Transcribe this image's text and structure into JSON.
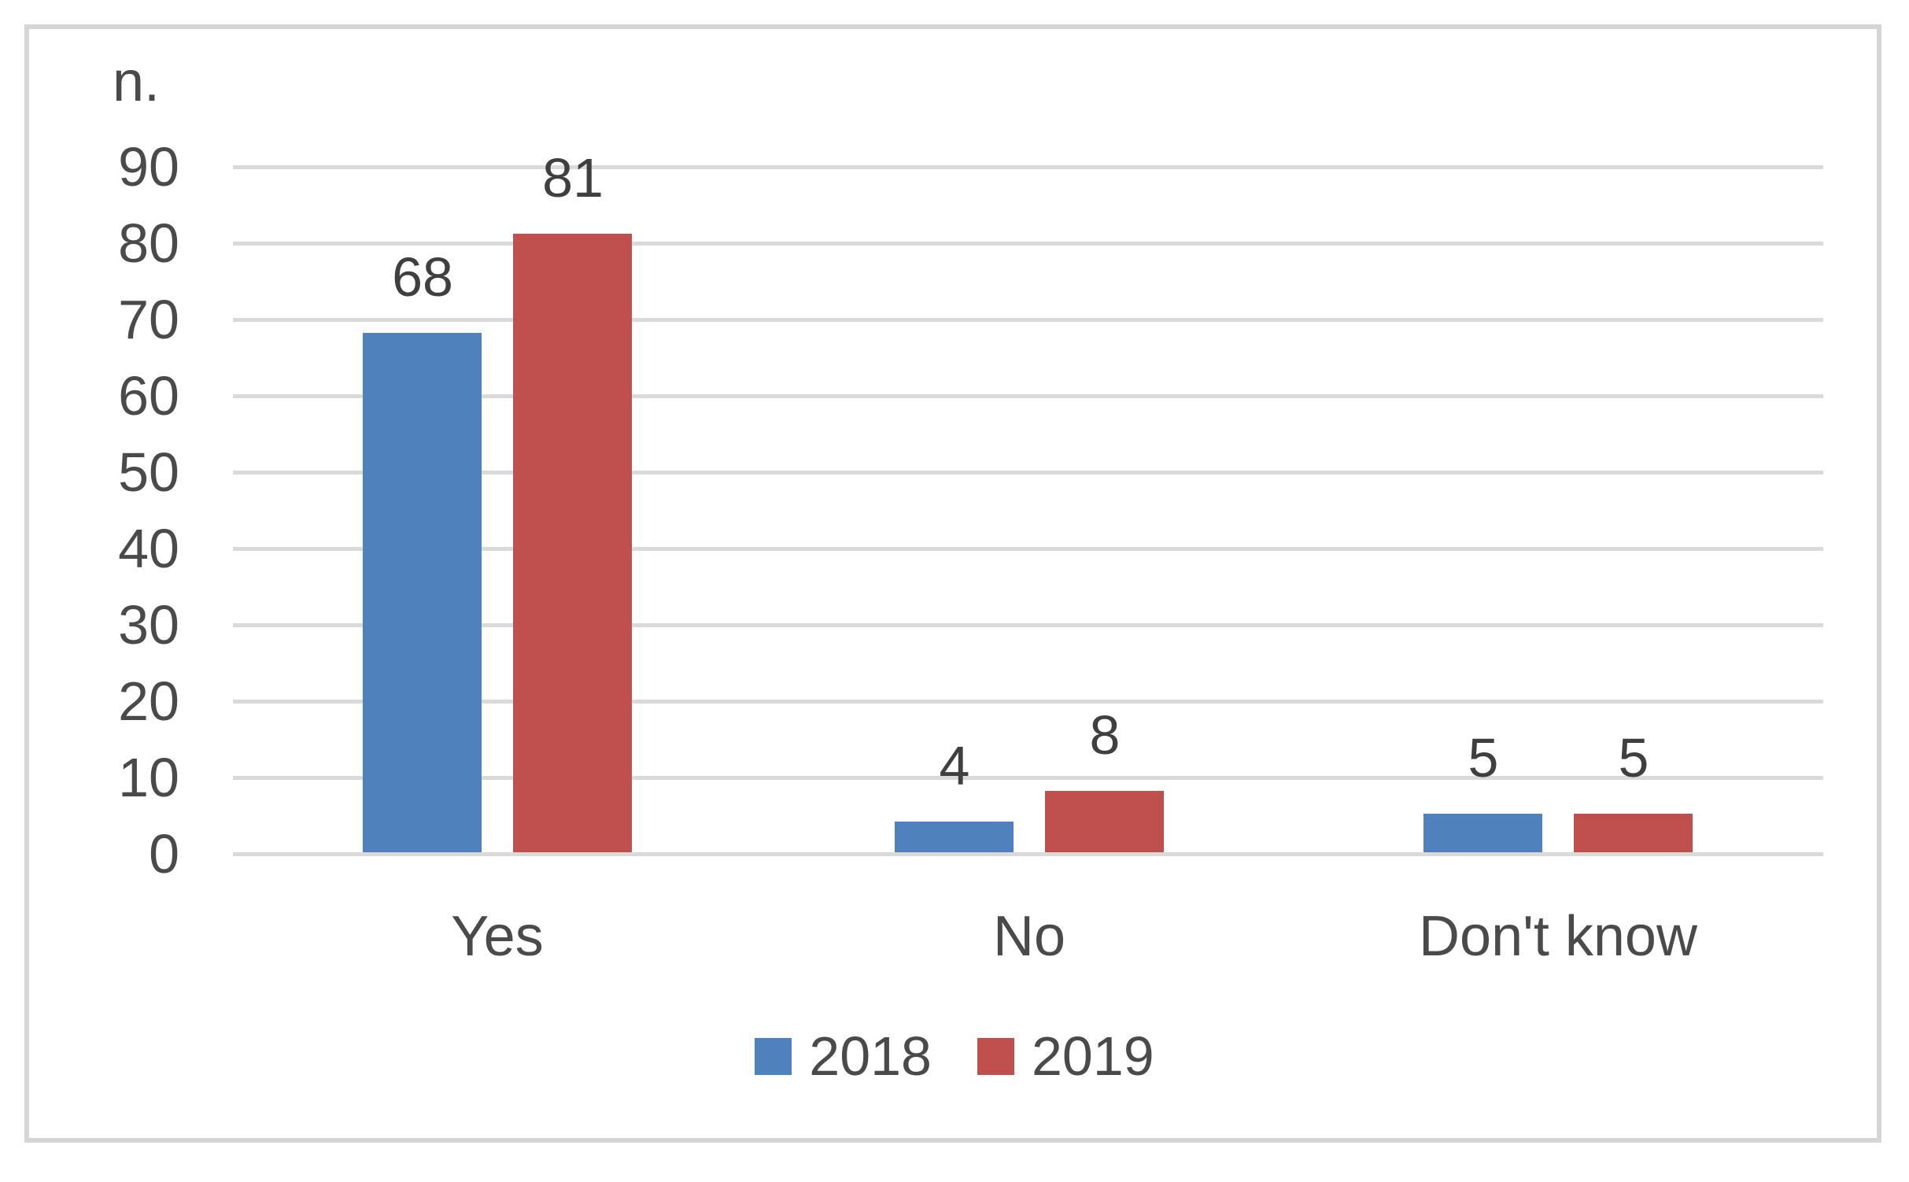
{
  "chart_data": {
    "type": "bar",
    "title": "",
    "ylabel": "n.",
    "xlabel": "",
    "categories": [
      "Yes",
      "No",
      "Don't know"
    ],
    "series": [
      {
        "name": "2018",
        "color": "#4F81BD",
        "values": [
          68,
          4,
          5
        ]
      },
      {
        "name": "2019",
        "color": "#C0504D",
        "values": [
          81,
          8,
          5
        ]
      }
    ],
    "data_labels": [
      {
        "series": "2018",
        "values": [
          "68",
          "4",
          "5"
        ]
      },
      {
        "series": "2019",
        "values": [
          "81",
          "8",
          "5"
        ]
      }
    ],
    "ylim": [
      0,
      90
    ],
    "ytick_step": 10,
    "ytick_labels": [
      "0",
      "10",
      "20",
      "30",
      "40",
      "50",
      "60",
      "70",
      "80",
      "90"
    ],
    "grid": true,
    "legend_position": "bottom"
  },
  "colors": {
    "series_2018": "#4F81BD",
    "series_2019": "#C0504D",
    "gridline": "#DADADA",
    "frame_border": "#D5D5D5",
    "text": "#4A4A4A"
  }
}
